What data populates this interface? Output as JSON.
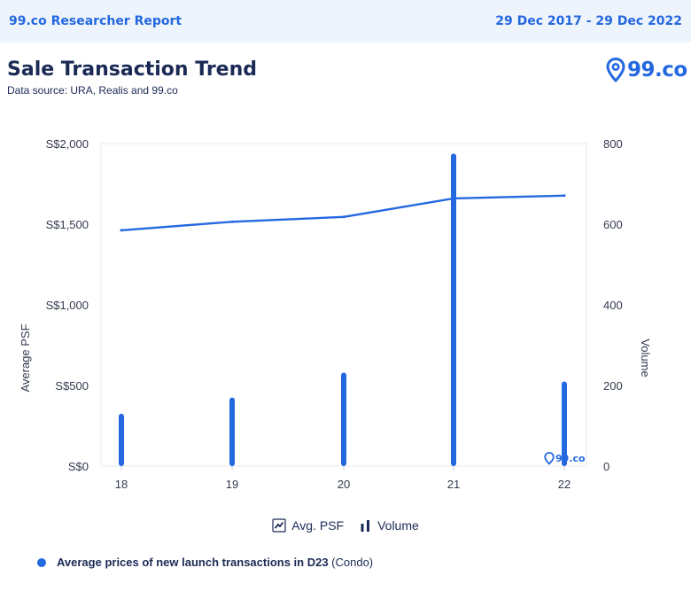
{
  "header": {
    "report_name": "99.co Researcher Report",
    "date_range": "29 Dec 2017 - 29 Dec 2022"
  },
  "brand": {
    "logo_text": "99.co",
    "watermark_text": "99.co"
  },
  "colors": {
    "accent": "#2468e0",
    "navy": "#1b2a55",
    "header_bg": "#eef4fc"
  },
  "chart_data": {
    "type": "line",
    "title": "Sale Transaction Trend",
    "subtitle": "Data source: URA, Realis and 99.co",
    "categories": [
      "18",
      "19",
      "20",
      "21",
      "22"
    ],
    "series": [
      {
        "name": "Avg. PSF",
        "type": "line",
        "axis": "left",
        "values": [
          1462,
          1515,
          1545,
          1660,
          1677
        ]
      },
      {
        "name": "Volume",
        "type": "bar",
        "axis": "right",
        "values": [
          130,
          170,
          232,
          775,
          210
        ]
      }
    ],
    "ylabel_left": "Average PSF",
    "ylabel_right": "Volume",
    "ylim_left": [
      0,
      2000
    ],
    "ylim_right": [
      0,
      800
    ],
    "yticks_left": [
      "S$0",
      "S$500",
      "S$1,000",
      "S$1,500",
      "S$2,000"
    ],
    "yticks_right": [
      "0",
      "200",
      "400",
      "600",
      "800"
    ],
    "legend_position": "bottom",
    "grid": false
  },
  "footnote": {
    "bold_text": "Average prices of new launch transactions in D23",
    "plain_text": " (Condo)"
  }
}
